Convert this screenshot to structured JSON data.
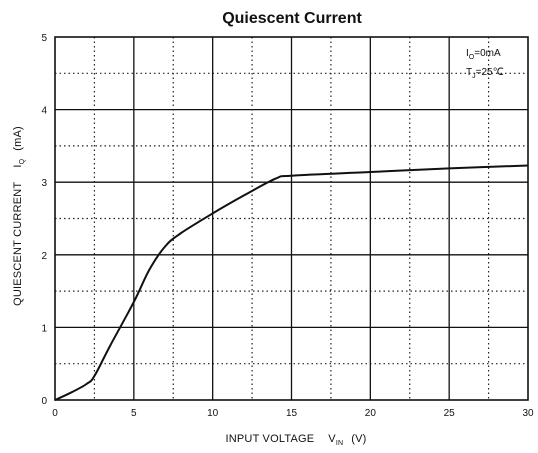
{
  "chart_data": {
    "type": "line",
    "title": "Quiescent Current",
    "xlabel": {
      "main": "INPUT VOLTAGE",
      "symbol": "V",
      "subscript": "IN",
      "unit": "(V)"
    },
    "ylabel": {
      "main": "QUIESCENT CURRENT",
      "symbol": "I",
      "subscript": "Q",
      "unit": "(mA)"
    },
    "xlim": [
      0,
      30
    ],
    "ylim": [
      0,
      5
    ],
    "xticks": [
      0,
      5,
      10,
      15,
      20,
      25,
      30
    ],
    "yticks": [
      0,
      1,
      2,
      3,
      4,
      5
    ],
    "x_minor_step": 2.5,
    "y_minor_step": 0.5,
    "grid": "major solid, minor dotted",
    "annotations": [
      {
        "symbol": "I",
        "subscript": "O",
        "text": "=0mA",
        "position": "top-right"
      },
      {
        "symbol": "T",
        "subscript": "J",
        "text": "=25℃",
        "position": "top-right"
      }
    ],
    "series": [
      {
        "x": [
          0,
          1,
          2,
          2.5,
          3.5,
          5,
          6,
          7,
          8,
          10,
          12,
          14,
          15,
          20,
          25,
          30
        ],
        "y": [
          0,
          0.1,
          0.22,
          0.33,
          0.75,
          1.35,
          1.8,
          2.12,
          2.3,
          2.57,
          2.82,
          3.05,
          3.09,
          3.14,
          3.19,
          3.23
        ]
      }
    ]
  }
}
